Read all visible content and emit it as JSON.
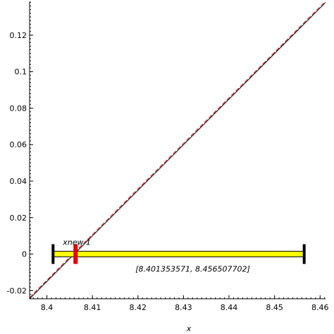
{
  "chart_data": {
    "type": "line",
    "xlabel": "x",
    "ylabel": "",
    "xlim": [
      8.3962,
      8.4612
    ],
    "ylim": [
      -0.0245,
      0.1385
    ],
    "x_ticks": [
      8.4,
      8.41,
      8.42,
      8.43,
      8.44,
      8.45,
      8.46
    ],
    "x_tick_labels": [
      "8.4",
      "8.41",
      "8.42",
      "8.43",
      "8.44",
      "8.45",
      "8.46"
    ],
    "y_ticks": [
      -0.02,
      0,
      0.02,
      0.04,
      0.06,
      0.08,
      0.1,
      0.12
    ],
    "y_tick_labels": [
      "-0.02",
      "0",
      "0.02",
      "0.04",
      "0.06",
      "0.08",
      "0.1",
      "0.12"
    ],
    "grid": false,
    "series": [
      {
        "color": "#000000",
        "style": "solid",
        "x": [
          8.3962,
          8.4612
        ],
        "y": [
          -0.0245,
          0.1379
        ]
      },
      {
        "color": "#cc0000",
        "style": "dashed",
        "x": [
          8.3962,
          8.4612
        ],
        "y": [
          -0.0238,
          0.1386
        ]
      }
    ],
    "interval": {
      "left": 8.401353571,
      "right": 8.456507702,
      "y": 0,
      "label": "[8.401353571, 8.456507702]",
      "fill_color": "#ffff00",
      "end_color": "#000000"
    },
    "marker": {
      "x": 8.4063,
      "y": 0,
      "label": "xnew 1",
      "color": "#e00000"
    }
  }
}
